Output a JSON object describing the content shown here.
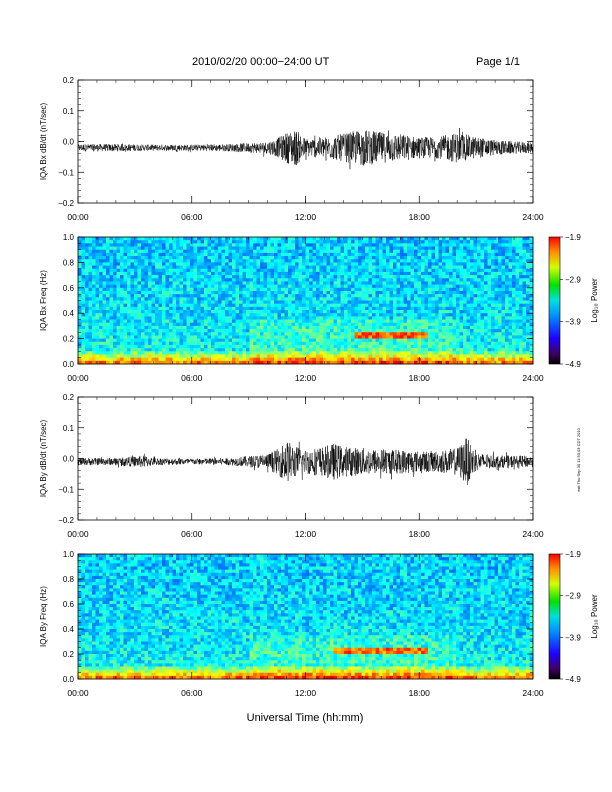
{
  "header": {
    "title": "2010/02/20  00:00−24:00 UT",
    "page": "Page 1/1"
  },
  "footer": {
    "xlabel": "Universal Time (hh:mm)"
  },
  "side_note": "exit Thu Sep 30 11:50:03 CDT 2010",
  "chart_data": [
    {
      "type": "line",
      "id": "bx_dbdt",
      "ylabel": "IQA Bx dB/dt (nT/sec)",
      "xlim": [
        0,
        24
      ],
      "ylim": [
        -0.2,
        0.2
      ],
      "yticks": [
        "0.2",
        "0.1",
        "0.0",
        "−0.1",
        "−0.2"
      ],
      "ytick_values": [
        0.2,
        0.1,
        0.0,
        -0.1,
        -0.2
      ],
      "xticks": [
        "00:00",
        "06:00",
        "12:00",
        "18:00",
        "24:00"
      ],
      "baseline": -0.02,
      "x_hours": [
        0,
        2,
        4,
        6,
        8,
        10,
        10.5,
        11,
        11.5,
        12,
        13,
        14,
        15,
        16,
        17,
        18,
        19,
        20,
        21,
        22,
        23,
        24
      ],
      "amplitude": [
        0.012,
        0.012,
        0.01,
        0.01,
        0.012,
        0.02,
        0.03,
        0.05,
        0.06,
        0.03,
        0.035,
        0.045,
        0.06,
        0.05,
        0.045,
        0.035,
        0.035,
        0.05,
        0.035,
        0.025,
        0.02,
        0.018
      ]
    },
    {
      "type": "heatmap",
      "id": "bx_spec",
      "ylabel": "IQA Bx Freq (Hz)",
      "xlim": [
        0,
        24
      ],
      "ylim": [
        0,
        1
      ],
      "yticks": [
        "1.0",
        "0.8",
        "0.6",
        "0.4",
        "0.2",
        "0.0"
      ],
      "ytick_values": [
        1.0,
        0.8,
        0.6,
        0.4,
        0.2,
        0.0
      ],
      "xticks": [
        "00:00",
        "06:00",
        "12:00",
        "18:00",
        "24:00"
      ],
      "colorbar": {
        "label": "Log₁₀ Power",
        "ticks": [
          "−1.9",
          "−2.9",
          "−3.9",
          "−4.9"
        ],
        "tick_values": [
          -1.9,
          -2.9,
          -3.9,
          -4.9
        ],
        "range": [
          -4.9,
          -1.9
        ]
      },
      "features": [
        {
          "name": "low-frequency band",
          "freq_max": 0.1
        },
        {
          "name": "pc1 band",
          "x_start": 14.5,
          "x_end": 18.5,
          "freq": 0.22
        }
      ]
    },
    {
      "type": "line",
      "id": "by_dbdt",
      "ylabel": "IQA By dB/dt (nT/sec)",
      "xlim": [
        0,
        24
      ],
      "ylim": [
        -0.2,
        0.2
      ],
      "yticks": [
        "0.2",
        "0.1",
        "0.0",
        "−0.1",
        "−0.2"
      ],
      "ytick_values": [
        0.2,
        0.1,
        0.0,
        -0.1,
        -0.2
      ],
      "xticks": [
        "00:00",
        "06:00",
        "12:00",
        "18:00",
        "24:00"
      ],
      "baseline": -0.01,
      "x_hours": [
        0,
        2,
        3.5,
        4,
        6,
        8,
        10,
        10.5,
        11,
        11.5,
        12,
        13,
        13.5,
        14,
        15,
        16,
        17,
        18,
        19,
        20,
        20.5,
        21,
        22,
        23,
        24
      ],
      "amplitude": [
        0.012,
        0.012,
        0.02,
        0.012,
        0.01,
        0.012,
        0.025,
        0.04,
        0.07,
        0.05,
        0.04,
        0.05,
        0.06,
        0.05,
        0.045,
        0.04,
        0.04,
        0.035,
        0.035,
        0.045,
        0.08,
        0.03,
        0.02,
        0.02,
        0.018
      ]
    },
    {
      "type": "heatmap",
      "id": "by_spec",
      "ylabel": "IQA By Freq (Hz)",
      "xlim": [
        0,
        24
      ],
      "ylim": [
        0,
        1
      ],
      "yticks": [
        "1.0",
        "0.8",
        "0.6",
        "0.4",
        "0.2",
        "0.0"
      ],
      "ytick_values": [
        1.0,
        0.8,
        0.6,
        0.4,
        0.2,
        0.0
      ],
      "xticks": [
        "00:00",
        "06:00",
        "12:00",
        "18:00",
        "24:00"
      ],
      "colorbar": {
        "label": "Log₁₀ Power",
        "ticks": [
          "−1.9",
          "−2.9",
          "−3.9",
          "−4.9"
        ],
        "tick_values": [
          -1.9,
          -2.9,
          -3.9,
          -4.9
        ],
        "range": [
          -4.9,
          -1.9
        ]
      },
      "features": [
        {
          "name": "low-frequency band",
          "freq_max": 0.1
        },
        {
          "name": "pc1 band",
          "x_start": 13.5,
          "x_end": 18.5,
          "freq": 0.22
        }
      ]
    }
  ]
}
